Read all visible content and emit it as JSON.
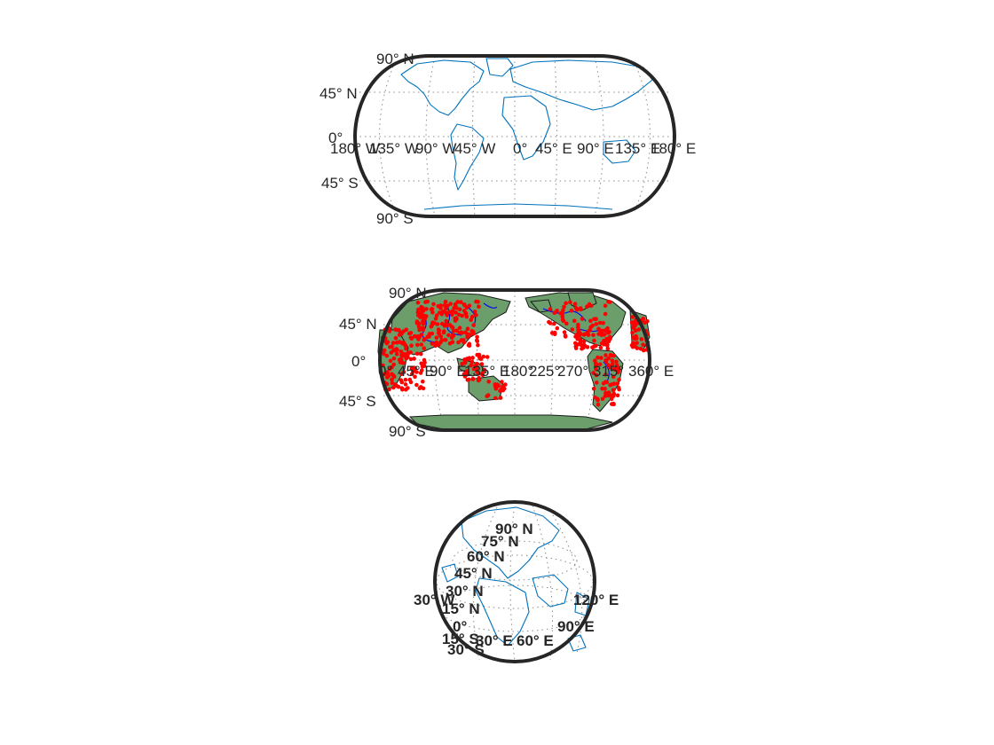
{
  "figure": {
    "panels": [
      {
        "id": "world-coastlines",
        "projection": "robinson",
        "content": "coastlines",
        "coast_color": "#0072bd",
        "frame_color": "#262626",
        "lat_labels": [
          "90° N",
          "45° N",
          "0°",
          "45° S",
          "90° S"
        ],
        "lon_labels": [
          "180° W",
          "135° W",
          "90° W",
          "45° W",
          "0°",
          "45° E",
          "90° E",
          "135° E",
          "180° E"
        ]
      },
      {
        "id": "world-land-points",
        "projection": "robinson",
        "content": "land, rivers and point markers",
        "land_color": "#6b9e6b",
        "river_color": "#0000ff",
        "marker_color": "#ff0000",
        "lat_labels": [
          "90° N",
          "45° N",
          "0°",
          "45° S",
          "90° S"
        ],
        "lon_labels": [
          "0°",
          "45° E",
          "90° E",
          "135° E",
          "180°",
          "225°",
          "270°",
          "315°",
          "360° E"
        ]
      },
      {
        "id": "globe-orthographic",
        "projection": "orthographic",
        "content": "coastlines",
        "coast_color": "#0072bd",
        "lat_labels": [
          "90° N",
          "75° N",
          "60° N",
          "45° N",
          "30° N",
          "15° N",
          "0°",
          "15° S",
          "30° S"
        ],
        "lon_labels": [
          "30° W",
          "30° E",
          "60° E",
          "90° E",
          "120° E"
        ]
      }
    ]
  }
}
